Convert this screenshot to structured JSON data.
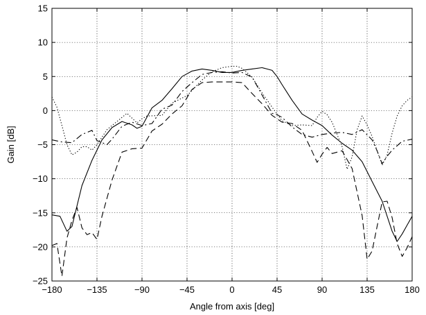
{
  "chart_data": {
    "type": "line",
    "title": "",
    "xlabel": "Angle from axis [deg]",
    "ylabel": "Gain [dB]",
    "xlim": [
      -180,
      180
    ],
    "ylim": [
      -25,
      15
    ],
    "xticks": [
      -180,
      -135,
      -90,
      -45,
      0,
      45,
      90,
      135,
      180
    ],
    "xtick_labels": [
      "−180",
      "−135",
      "−90",
      "−45",
      "0",
      "45",
      "90",
      "135",
      "180"
    ],
    "yticks": [
      -25,
      -20,
      -15,
      -10,
      -5,
      0,
      5,
      10,
      15
    ],
    "ytick_labels": [
      "−25",
      "−20",
      "−15",
      "−10",
      "−5",
      "0",
      "5",
      "10",
      "15"
    ],
    "grid": true,
    "legend": "none",
    "series": [
      {
        "style": "solid",
        "x": [
          -180,
          -172,
          -165,
          -160,
          -150,
          -140,
          -130,
          -120,
          -110,
          -100,
          -95,
          -90,
          -80,
          -70,
          -60,
          -50,
          -40,
          -30,
          -20,
          -10,
          0,
          10,
          20,
          30,
          40,
          45,
          50,
          60,
          70,
          80,
          90,
          100,
          110,
          120,
          130,
          140,
          150,
          160,
          165,
          170,
          175,
          180
        ],
        "y": [
          -15.3,
          -15.5,
          -17.7,
          -17,
          -11,
          -7.3,
          -4.3,
          -2.5,
          -1.6,
          -2.1,
          -2.6,
          -2.3,
          0.4,
          1.5,
          3.2,
          5,
          5.8,
          6.1,
          5.9,
          5.6,
          5.6,
          5.9,
          6.1,
          6.3,
          5.9,
          5,
          3.8,
          1.5,
          -0.5,
          -1.4,
          -2.2,
          -3.6,
          -4.8,
          -5.8,
          -7.5,
          -10.4,
          -13.3,
          -17.7,
          -19.2,
          -18.1,
          -16.8,
          -15.5
        ]
      },
      {
        "style": "dashed",
        "x": [
          -180,
          -175,
          -170,
          -165,
          -160,
          -155,
          -150,
          -145,
          -140,
          -135,
          -130,
          -120,
          -110,
          -100,
          -90,
          -80,
          -70,
          -60,
          -50,
          -40,
          -30,
          -20,
          -10,
          0,
          10,
          20,
          30,
          40,
          50,
          60,
          70,
          80,
          85,
          90,
          95,
          100,
          110,
          120,
          130,
          135,
          140,
          145,
          150,
          155,
          160,
          165,
          170,
          175,
          180
        ],
        "y": [
          -19.8,
          -19.5,
          -24.3,
          -18.7,
          -16.1,
          -14.2,
          -17.2,
          -18.2,
          -17.9,
          -18.9,
          -15.5,
          -10.2,
          -6.1,
          -5.6,
          -5.5,
          -3,
          -2,
          -0.5,
          0.7,
          3.1,
          4.1,
          4.2,
          4.2,
          4.2,
          4.1,
          2.5,
          1,
          -0.7,
          -1.7,
          -1.9,
          -2.9,
          -6,
          -7.6,
          -6.4,
          -5.4,
          -6.3,
          -5.9,
          -8.5,
          -15.4,
          -21.8,
          -20.6,
          -17,
          -13.4,
          -13.3,
          -15.7,
          -19.5,
          -21.4,
          -20.1,
          -18.5
        ]
      },
      {
        "style": "dashdot",
        "x": [
          -180,
          -170,
          -160,
          -150,
          -140,
          -135,
          -125,
          -120,
          -110,
          -100,
          -90,
          -80,
          -70,
          -60,
          -50,
          -40,
          -30,
          -20,
          -10,
          0,
          10,
          20,
          30,
          40,
          45,
          50,
          60,
          70,
          80,
          90,
          100,
          110,
          120,
          130,
          140,
          145,
          150,
          155,
          160,
          170,
          180
        ],
        "y": [
          -4.3,
          -4.6,
          -4.7,
          -3.5,
          -2.9,
          -4.4,
          -5,
          -4.2,
          -2.3,
          -1.7,
          -2.2,
          -1.9,
          0.2,
          0.8,
          2.8,
          4.1,
          5.3,
          5.6,
          5.7,
          5.5,
          5.6,
          4.9,
          2.3,
          -0.4,
          -0.6,
          -1,
          -2.4,
          -3.5,
          -3.9,
          -3.5,
          -3.3,
          -3.2,
          -3.5,
          -2.8,
          -4.3,
          -5.9,
          -7.8,
          -6.7,
          -5.8,
          -4.5,
          -4.2
        ]
      },
      {
        "style": "dotted",
        "x": [
          -180,
          -175,
          -170,
          -165,
          -160,
          -155,
          -150,
          -145,
          -140,
          -135,
          -125,
          -115,
          -105,
          -95,
          -90,
          -85,
          -70,
          -60,
          -45,
          -30,
          -20,
          -10,
          0,
          5,
          10,
          20,
          30,
          40,
          50,
          60,
          70,
          80,
          85,
          90,
          95,
          100,
          110,
          115,
          120,
          125,
          130,
          135,
          140,
          145,
          150,
          155,
          160,
          165,
          170,
          175,
          180
        ],
        "y": [
          2,
          0.5,
          -2.2,
          -5,
          -6.5,
          -6.1,
          -5.3,
          -5.3,
          -5.8,
          -5,
          -2.8,
          -1.6,
          -0.4,
          -1.8,
          -1.2,
          -0.8,
          -0.7,
          1.1,
          2.2,
          4.5,
          5.7,
          6.3,
          6.5,
          6.5,
          6.2,
          4.9,
          2.6,
          0.5,
          -1.5,
          -2.2,
          -2.1,
          -2.2,
          -1,
          -0.1,
          -0.6,
          -1.7,
          -5.3,
          -8.6,
          -6.8,
          -2.8,
          -0.8,
          -2.1,
          -3.8,
          -5.9,
          -8,
          -6.5,
          -3.3,
          -0.8,
          0.7,
          1.5,
          2
        ]
      }
    ]
  }
}
